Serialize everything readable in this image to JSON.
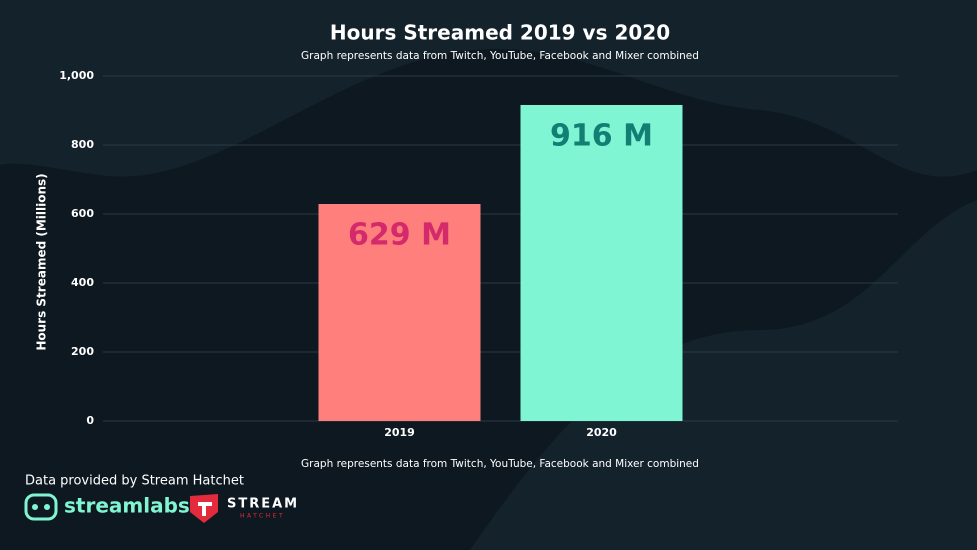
{
  "chart_data": {
    "type": "bar",
    "title": "Hours Streamed 2019 vs 2020",
    "subtitle": "Graph represents data from Twitch, YouTube, Facebook and Mixer combined",
    "y_label": "Hours Streamed (Millions)",
    "categories": [
      "2019",
      "2020"
    ],
    "values": [
      629,
      916
    ],
    "value_labels": [
      "629 M",
      "916 M"
    ],
    "colors": [
      "#fe7f7c",
      "#7ff5d3"
    ],
    "label_colors": [
      "#d42a6c",
      "#137f74"
    ],
    "ylim": [
      0,
      1000
    ],
    "yticks": [
      0,
      200,
      400,
      600,
      800,
      {
        "value": 1000,
        "label": "1,000"
      }
    ],
    "grid": true
  },
  "footer": {
    "note": "Graph represents data from Twitch, YouTube, Facebook and Mixer combined",
    "source": "Data provided by Stream Hatchet",
    "logo_streamlabs": "streamlabs",
    "logo_stream": "STREAM",
    "logo_hatchet": "HATCHET"
  }
}
